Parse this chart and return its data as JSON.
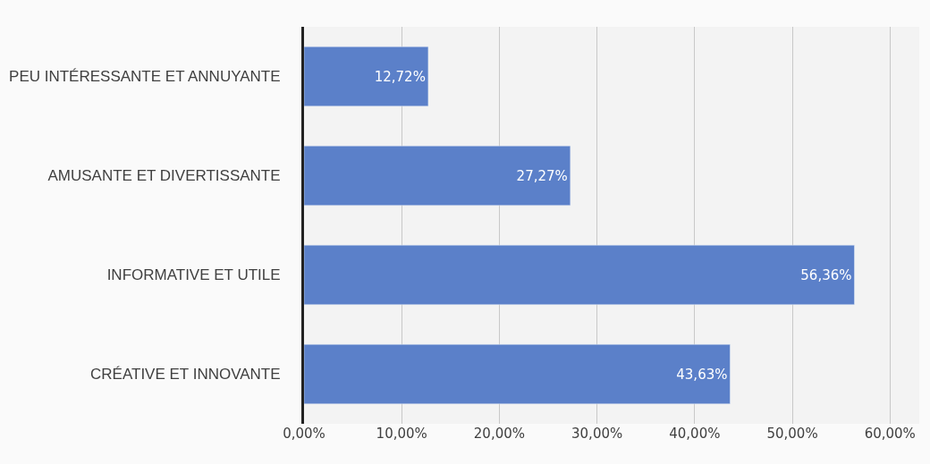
{
  "chart_data": {
    "type": "bar",
    "orientation": "horizontal",
    "categories": [
      "PEU INTÉRESSANTE ET ANNUYANTE",
      "AMUSANTE ET DIVERTISSANTE",
      "INFORMATIVE ET UTILE",
      "CRÉATIVE ET INNOVANTE"
    ],
    "values": [
      12.72,
      27.27,
      56.36,
      43.63
    ],
    "value_labels": [
      "12,72%",
      "27,27%",
      "56,36%",
      "43,63%"
    ],
    "color": "#5b80c9",
    "xlim": [
      0,
      63
    ],
    "xticks": [
      {
        "value": 0,
        "label": "0,00%"
      },
      {
        "value": 10,
        "label": "10,00%"
      },
      {
        "value": 20,
        "label": "20,00%"
      },
      {
        "value": 30,
        "label": "30,00%"
      },
      {
        "value": 40,
        "label": "40,00%"
      },
      {
        "value": 50,
        "label": "50,00%"
      },
      {
        "value": 60,
        "label": "60,00%"
      }
    ],
    "grid": "x",
    "legend": false
  }
}
